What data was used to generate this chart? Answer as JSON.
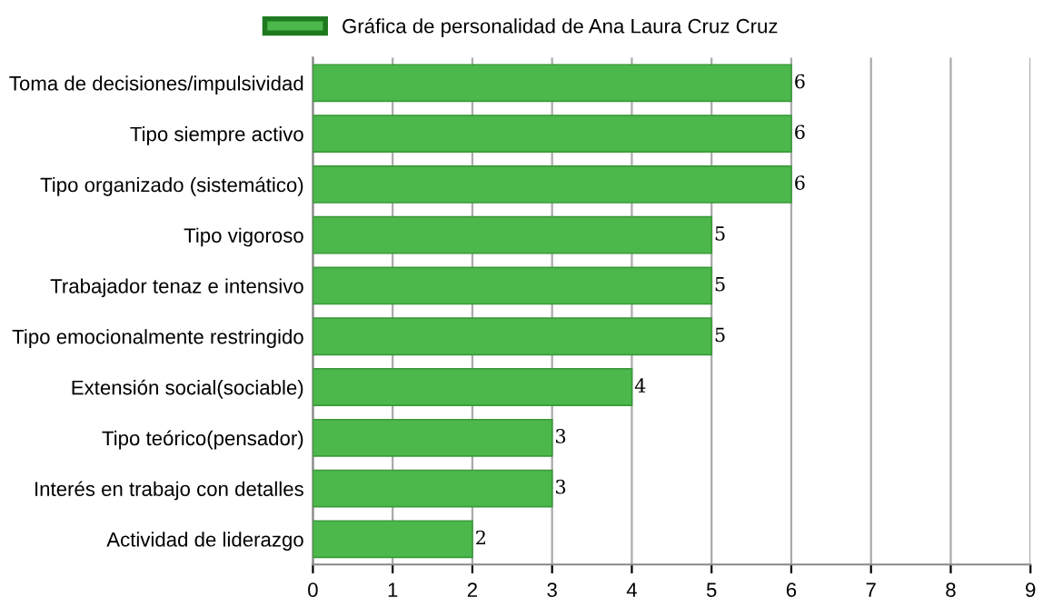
{
  "chart_data": {
    "type": "bar",
    "orientation": "horizontal",
    "categories": [
      "Toma de decisiones/impulsividad",
      "Tipo siempre activo",
      "Tipo organizado (sistemático)",
      "Tipo vigoroso",
      "Trabajador tenaz e intensivo",
      "Tipo emocionalmente restringido",
      "Extensión social(sociable)",
      "Tipo teórico(pensador)",
      "Interés en trabajo con detalles",
      "Actividad de liderazgo"
    ],
    "series": [
      {
        "name": "Gráfica de personalidad de Ana Laura Cruz Cruz",
        "color": "#4cb84c",
        "values": [
          6,
          6,
          6,
          5,
          5,
          5,
          4,
          3,
          3,
          2
        ]
      }
    ],
    "xlim": [
      0,
      9
    ],
    "xticks": [
      0,
      1,
      2,
      3,
      4,
      5,
      6,
      7,
      8,
      9
    ],
    "grid": "x",
    "legend": "top",
    "data_labels": true
  }
}
